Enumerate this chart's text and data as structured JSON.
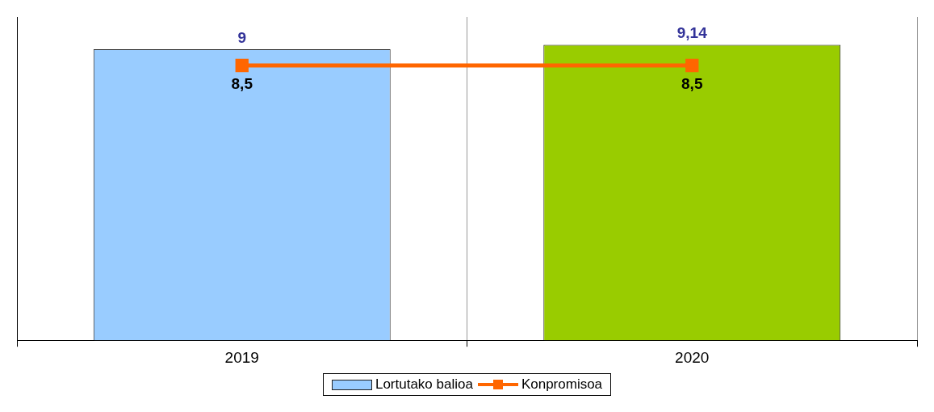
{
  "chart_data": {
    "type": "bar",
    "categories": [
      "2019",
      "2020"
    ],
    "series": [
      {
        "name": "Lortutako balioa",
        "colors": [
          "#99ccff",
          "#99cc00"
        ],
        "values": [
          9,
          9.14
        ],
        "value_labels": [
          "9",
          "9,14"
        ]
      },
      {
        "name": "Konpromisoa",
        "type": "line",
        "color": "#ff6600",
        "values": [
          8.5,
          8.5
        ],
        "value_labels": [
          "8,5",
          "8,5"
        ]
      }
    ],
    "grid": "x",
    "legend": "bottom",
    "marker": "square",
    "tick_labels": "x"
  }
}
